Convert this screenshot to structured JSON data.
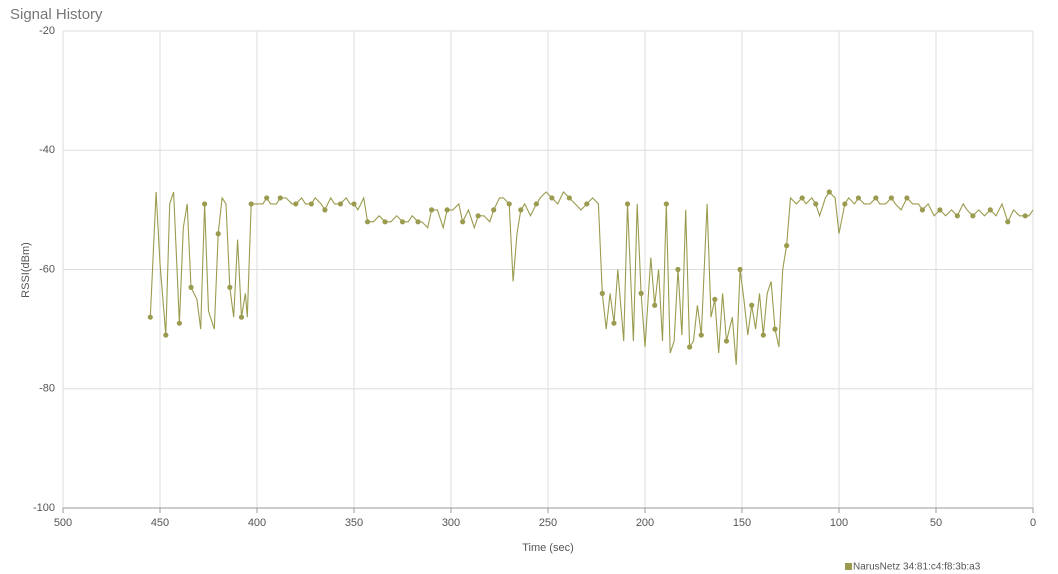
{
  "chart_data": {
    "type": "line",
    "title": "Signal History",
    "x_label": "Time (sec)",
    "y_label": "RSSI(dBm)",
    "xlim": [
      500,
      0
    ],
    "xticks": [
      500,
      450,
      400,
      350,
      300,
      250,
      200,
      150,
      100,
      50,
      0
    ],
    "ylim": [
      -100,
      -20
    ],
    "yticks": [
      -20,
      -40,
      -60,
      -80,
      -100
    ],
    "grid": true,
    "legend": "bottom",
    "x": [
      455,
      452,
      450,
      447,
      445,
      443,
      440,
      438,
      436,
      434,
      431,
      429,
      427,
      425,
      422,
      420,
      418,
      416,
      414,
      412,
      410,
      408,
      406,
      405,
      403,
      400,
      397,
      395,
      393,
      390,
      388,
      385,
      382,
      380,
      377,
      375,
      372,
      370,
      367,
      365,
      362,
      360,
      357,
      354,
      352,
      350,
      348,
      345,
      343,
      340,
      337,
      334,
      331,
      328,
      325,
      322,
      320,
      317,
      315,
      312,
      310,
      307,
      304,
      302,
      299,
      296,
      294,
      291,
      288,
      286,
      283,
      280,
      278,
      275,
      273,
      270,
      268,
      266,
      264,
      262,
      259,
      256,
      254,
      251,
      248,
      245,
      242,
      239,
      236,
      233,
      230,
      227,
      224,
      222,
      220,
      218,
      216,
      214,
      211,
      209,
      206,
      204,
      202,
      200,
      197,
      195,
      193,
      191,
      189,
      187,
      185,
      183,
      181,
      179,
      177,
      175,
      173,
      171,
      168,
      166,
      164,
      162,
      160,
      158,
      155,
      153,
      151,
      149,
      147,
      145,
      143,
      141,
      139,
      137,
      135,
      133,
      131,
      129,
      127,
      125,
      122,
      119,
      117,
      114,
      112,
      110,
      107,
      105,
      102,
      100,
      97,
      95,
      92,
      90,
      87,
      84,
      81,
      79,
      76,
      73,
      71,
      68,
      65,
      62,
      59,
      57,
      54,
      51,
      48,
      45,
      42,
      39,
      36,
      34,
      31,
      28,
      25,
      22,
      19,
      16,
      13,
      10,
      7,
      4,
      2,
      0
    ],
    "series": [
      {
        "name": "NarusNetz 34:81:c4:f8:3b:a3",
        "color": "#9b9b4f",
        "values": [
          -68,
          -47,
          -59,
          -71,
          -49,
          -47,
          -69,
          -53,
          -49,
          -63,
          -65,
          -70,
          -49,
          -67,
          -70,
          -54,
          -48,
          -49,
          -63,
          -68,
          -55,
          -68,
          -64,
          -68,
          -49,
          -49,
          -49,
          -48,
          -49,
          -49,
          -48,
          -48,
          -49,
          -49,
          -48,
          -49,
          -49,
          -48,
          -49,
          -50,
          -48,
          -49,
          -49,
          -48,
          -49,
          -49,
          -50,
          -48,
          -52,
          -52,
          -51,
          -52,
          -52,
          -51,
          -52,
          -52,
          -51,
          -52,
          -52,
          -53,
          -50,
          -50,
          -53,
          -50,
          -50,
          -49,
          -52,
          -50,
          -53,
          -51,
          -51,
          -52,
          -50,
          -48,
          -48,
          -49,
          -62,
          -54,
          -50,
          -49,
          -51,
          -49,
          -48,
          -47,
          -48,
          -49,
          -47,
          -48,
          -49,
          -50,
          -49,
          -48,
          -49,
          -64,
          -70,
          -64,
          -69,
          -60,
          -72,
          -49,
          -72,
          -49,
          -64,
          -73,
          -58,
          -66,
          -60,
          -72,
          -49,
          -74,
          -72,
          -60,
          -71,
          -50,
          -73,
          -72,
          -66,
          -71,
          -49,
          -68,
          -65,
          -74,
          -64,
          -72,
          -68,
          -76,
          -60,
          -65,
          -71,
          -66,
          -70,
          -64,
          -71,
          -64,
          -62,
          -70,
          -73,
          -60,
          -56,
          -48,
          -49,
          -48,
          -49,
          -48,
          -49,
          -51,
          -48,
          -47,
          -48,
          -54,
          -49,
          -48,
          -49,
          -48,
          -49,
          -49,
          -48,
          -49,
          -49,
          -48,
          -49,
          -50,
          -48,
          -49,
          -49,
          -50,
          -49,
          -51,
          -50,
          -51,
          -50,
          -51,
          -49,
          -50,
          -51,
          -50,
          -51,
          -50,
          -51,
          -49,
          -52,
          -50,
          -51,
          -51,
          -51,
          -50
        ]
      }
    ]
  }
}
